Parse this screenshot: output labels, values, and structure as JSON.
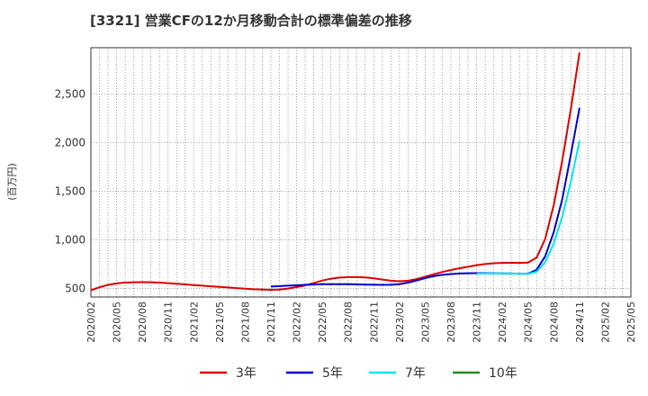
{
  "chart_data": {
    "type": "line",
    "title": "[3321]  営業CFの12か月移動合計の標準偏差の推移",
    "ylabel": "(百万円)",
    "xlabel": "",
    "x": [
      "2020/02",
      "2020/05",
      "2020/08",
      "2020/11",
      "2021/02",
      "2021/05",
      "2021/08",
      "2021/11",
      "2022/02",
      "2022/05",
      "2022/08",
      "2022/11",
      "2023/02",
      "2023/05",
      "2023/08",
      "2023/11",
      "2024/02",
      "2024/05",
      "2024/08",
      "2024/11",
      "2025/02",
      "2025/05"
    ],
    "ylim": [
      410,
      2980
    ],
    "yticks": [
      500,
      1000,
      1500,
      2000,
      2500
    ],
    "ytick_labels": [
      "500",
      "1,000",
      "1,500",
      "2,000",
      "2,500"
    ],
    "grid": true,
    "legend_position": "bottom",
    "series": [
      {
        "name": "3年",
        "color": "#dd0000",
        "points": [
          [
            "2020/02",
            480
          ],
          [
            "2020/03",
            510
          ],
          [
            "2020/04",
            535
          ],
          [
            "2020/05",
            550
          ],
          [
            "2020/06",
            558
          ],
          [
            "2020/07",
            562
          ],
          [
            "2020/08",
            563
          ],
          [
            "2020/09",
            562
          ],
          [
            "2020/10",
            558
          ],
          [
            "2020/11",
            553
          ],
          [
            "2020/12",
            547
          ],
          [
            "2021/01",
            540
          ],
          [
            "2021/02",
            533
          ],
          [
            "2021/03",
            527
          ],
          [
            "2021/04",
            520
          ],
          [
            "2021/05",
            514
          ],
          [
            "2021/06",
            508
          ],
          [
            "2021/07",
            502
          ],
          [
            "2021/08",
            496
          ],
          [
            "2021/09",
            490
          ],
          [
            "2021/10",
            486
          ],
          [
            "2021/11",
            484
          ],
          [
            "2021/12",
            487
          ],
          [
            "2022/01",
            497
          ],
          [
            "2022/02",
            512
          ],
          [
            "2022/03",
            530
          ],
          [
            "2022/04",
            555
          ],
          [
            "2022/05",
            580
          ],
          [
            "2022/06",
            598
          ],
          [
            "2022/07",
            610
          ],
          [
            "2022/08",
            615
          ],
          [
            "2022/09",
            615
          ],
          [
            "2022/10",
            612
          ],
          [
            "2022/11",
            603
          ],
          [
            "2022/12",
            590
          ],
          [
            "2023/01",
            578
          ],
          [
            "2023/02",
            572
          ],
          [
            "2023/03",
            578
          ],
          [
            "2023/04",
            595
          ],
          [
            "2023/05",
            620
          ],
          [
            "2023/06",
            645
          ],
          [
            "2023/07",
            668
          ],
          [
            "2023/08",
            688
          ],
          [
            "2023/09",
            706
          ],
          [
            "2023/10",
            722
          ],
          [
            "2023/11",
            738
          ],
          [
            "2023/12",
            750
          ],
          [
            "2024/01",
            758
          ],
          [
            "2024/02",
            762
          ],
          [
            "2024/03",
            763
          ],
          [
            "2024/04",
            762
          ],
          [
            "2024/05",
            765
          ],
          [
            "2024/06",
            815
          ],
          [
            "2024/07",
            1010
          ],
          [
            "2024/08",
            1360
          ],
          [
            "2024/09",
            1820
          ],
          [
            "2024/10",
            2350
          ],
          [
            "2024/11",
            2930
          ]
        ]
      },
      {
        "name": "5年",
        "color": "#0000cc",
        "points": [
          [
            "2021/11",
            518
          ],
          [
            "2021/12",
            522
          ],
          [
            "2022/01",
            527
          ],
          [
            "2022/02",
            531
          ],
          [
            "2022/03",
            535
          ],
          [
            "2022/04",
            539
          ],
          [
            "2022/05",
            542
          ],
          [
            "2022/06",
            543
          ],
          [
            "2022/07",
            543
          ],
          [
            "2022/08",
            542
          ],
          [
            "2022/09",
            540
          ],
          [
            "2022/10",
            538
          ],
          [
            "2022/11",
            536
          ],
          [
            "2022/12",
            535
          ],
          [
            "2023/01",
            536
          ],
          [
            "2023/02",
            543
          ],
          [
            "2023/03",
            558
          ],
          [
            "2023/04",
            580
          ],
          [
            "2023/05",
            605
          ],
          [
            "2023/06",
            625
          ],
          [
            "2023/07",
            638
          ],
          [
            "2023/08",
            647
          ],
          [
            "2023/09",
            652
          ],
          [
            "2023/10",
            655
          ],
          [
            "2023/11",
            656
          ],
          [
            "2023/12",
            656
          ],
          [
            "2024/01",
            655
          ],
          [
            "2024/02",
            654
          ],
          [
            "2024/03",
            652
          ],
          [
            "2024/04",
            650
          ],
          [
            "2024/05",
            650
          ],
          [
            "2024/06",
            690
          ],
          [
            "2024/07",
            830
          ],
          [
            "2024/08",
            1080
          ],
          [
            "2024/09",
            1420
          ],
          [
            "2024/10",
            1880
          ],
          [
            "2024/11",
            2360
          ]
        ]
      },
      {
        "name": "7年",
        "color": "#00e5ee",
        "points": [
          [
            "2023/11",
            650
          ],
          [
            "2023/12",
            652
          ],
          [
            "2024/01",
            653
          ],
          [
            "2024/02",
            653
          ],
          [
            "2024/03",
            652
          ],
          [
            "2024/04",
            650
          ],
          [
            "2024/05",
            648
          ],
          [
            "2024/06",
            670
          ],
          [
            "2024/07",
            770
          ],
          [
            "2024/08",
            960
          ],
          [
            "2024/09",
            1240
          ],
          [
            "2024/10",
            1600
          ],
          [
            "2024/11",
            2020
          ]
        ]
      },
      {
        "name": "10年",
        "color": "#228b22",
        "points": []
      }
    ]
  }
}
